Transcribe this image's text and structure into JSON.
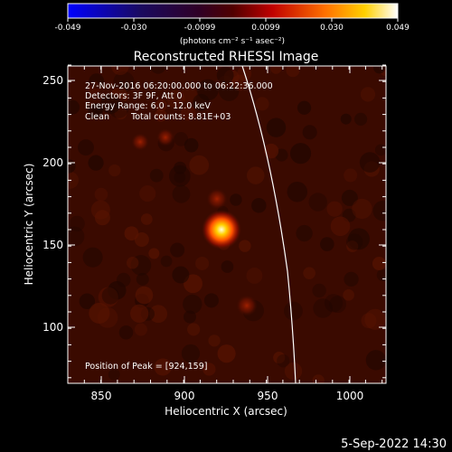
{
  "colorbar": {
    "tick_labels": [
      "-0.049",
      "-0.030",
      "-0.0099",
      "0.0099",
      "0.030",
      "0.049"
    ],
    "unit_label": "(photons cm⁻² s⁻¹ asec⁻²)",
    "range": [
      -0.049,
      0.049
    ]
  },
  "title": "Reconstructed RHESSI Image",
  "info": {
    "time_range": "27-Nov-2016 06:20:00.000 to 06:22:36.000",
    "detectors": "Detectors: 3F 9F, Att 0",
    "energy": "Energy Range: 6.0 - 12.0 keV",
    "method": "Clean",
    "counts": "Total counts: 8.81E+03"
  },
  "peak_text": "Position of Peak = [924,159]",
  "peak_position": [
    924,
    159
  ],
  "axes": {
    "xlabel": "Heliocentric X (arcsec)",
    "ylabel": "Heliocentric Y (arcsec)",
    "x_ticks": [
      "850",
      "900",
      "950",
      "1000"
    ],
    "y_ticks": [
      "100",
      "150",
      "200",
      "250"
    ],
    "xlim": [
      832,
      1024
    ],
    "ylim": [
      66,
      259
    ]
  },
  "timestamp": "5-Sep-2022 14:30",
  "colors": {
    "background": "#000000",
    "limb_line": "#ffffff",
    "peak": "#ffffe0",
    "map_base": "#3a0a00"
  }
}
